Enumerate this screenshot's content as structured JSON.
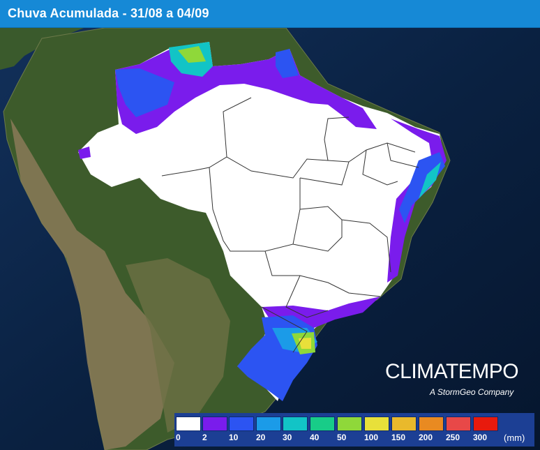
{
  "title": "Chuva Acumulada - 31/08 a 04/09",
  "brand": {
    "name": "CLIMATEMPO",
    "tagline": "A StormGeo Company"
  },
  "legend": {
    "unit": "(mm)",
    "thresholds": [
      "0",
      "2",
      "10",
      "20",
      "30",
      "40",
      "50",
      "100",
      "150",
      "200",
      "250",
      "300"
    ],
    "colors": [
      "#ffffff",
      "#7a1cec",
      "#2c54f2",
      "#1b9be8",
      "#12c4c6",
      "#18cc88",
      "#8fd83a",
      "#e8e03a",
      "#e9b92c",
      "#e98a21",
      "#e84848",
      "#e81a0d"
    ]
  },
  "map": {
    "background": "satellite-terrain",
    "ocean_color": "#0b2647",
    "land_color": "#3d5a2a"
  }
}
